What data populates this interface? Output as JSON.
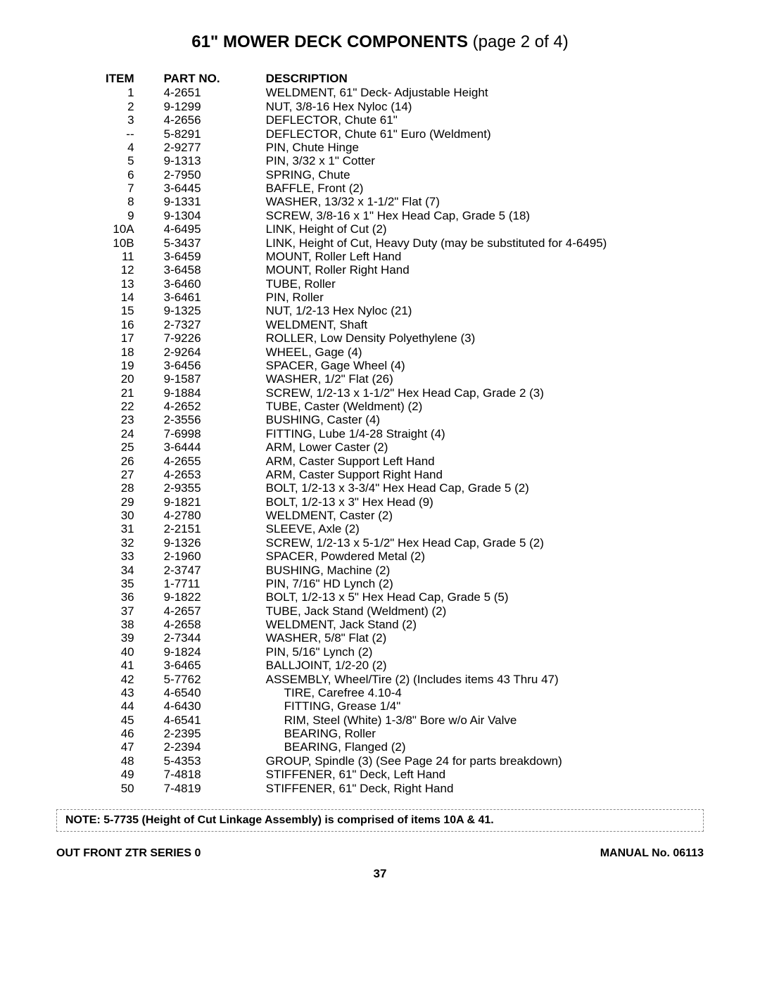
{
  "title": {
    "main": "61\" MOWER DECK COMPONENTS",
    "suffix": " (page 2 of 4)"
  },
  "headers": {
    "item": "ITEM",
    "part": "PART NO.",
    "desc": "DESCRIPTION"
  },
  "rows": [
    {
      "item": "1",
      "part": "4-2651",
      "desc": "WELDMENT, 61\" Deck- Adjustable Height"
    },
    {
      "item": "2",
      "part": "9-1299",
      "desc": "NUT, 3/8-16 Hex Nyloc (14)"
    },
    {
      "item": "3",
      "part": "4-2656",
      "desc": "DEFLECTOR, Chute 61\""
    },
    {
      "item": "--",
      "part": "5-8291",
      "desc": "DEFLECTOR, Chute 61\" Euro (Weldment)"
    },
    {
      "item": "4",
      "part": "2-9277",
      "desc": "PIN, Chute Hinge"
    },
    {
      "item": "5",
      "part": "9-1313",
      "desc": "PIN, 3/32 x 1\" Cotter"
    },
    {
      "item": "6",
      "part": "2-7950",
      "desc": "SPRING, Chute"
    },
    {
      "item": "7",
      "part": "3-6445",
      "desc": "BAFFLE, Front (2)"
    },
    {
      "item": "8",
      "part": "9-1331",
      "desc": "WASHER, 13/32 x 1-1/2\" Flat (7)"
    },
    {
      "item": "9",
      "part": "9-1304",
      "desc": "SCREW, 3/8-16 x 1\" Hex Head Cap, Grade 5 (18)"
    },
    {
      "item": "10A",
      "part": "4-6495",
      "desc": "LINK, Height of Cut (2)"
    },
    {
      "item": "10B",
      "part": "5-3437",
      "desc": "LINK, Height of Cut, Heavy Duty (may be substituted for 4-6495)"
    },
    {
      "item": "11",
      "part": "3-6459",
      "desc": "MOUNT, Roller Left Hand"
    },
    {
      "item": "12",
      "part": "3-6458",
      "desc": "MOUNT, Roller Right Hand"
    },
    {
      "item": "13",
      "part": "3-6460",
      "desc": "TUBE, Roller"
    },
    {
      "item": "14",
      "part": "3-6461",
      "desc": "PIN, Roller"
    },
    {
      "item": "15",
      "part": "9-1325",
      "desc": "NUT, 1/2-13 Hex Nyloc (21)"
    },
    {
      "item": "16",
      "part": "2-7327",
      "desc": "WELDMENT, Shaft"
    },
    {
      "item": "17",
      "part": "7-9226",
      "desc": "ROLLER, Low Density Polyethylene (3)"
    },
    {
      "item": "18",
      "part": "2-9264",
      "desc": "WHEEL, Gage (4)"
    },
    {
      "item": "19",
      "part": "3-6456",
      "desc": "SPACER, Gage Wheel (4)"
    },
    {
      "item": "20",
      "part": "9-1587",
      "desc": "WASHER, 1/2\" Flat (26)"
    },
    {
      "item": "21",
      "part": "9-1884",
      "desc": "SCREW, 1/2-13 x 1-1/2\" Hex Head Cap, Grade 2 (3)"
    },
    {
      "item": "22",
      "part": "4-2652",
      "desc": "TUBE, Caster (Weldment) (2)"
    },
    {
      "item": "23",
      "part": "2-3556",
      "desc": "BUSHING, Caster (4)"
    },
    {
      "item": "24",
      "part": "7-6998",
      "desc": "FITTING, Lube 1/4-28 Straight (4)"
    },
    {
      "item": "25",
      "part": "3-6444",
      "desc": "ARM, Lower Caster (2)"
    },
    {
      "item": "26",
      "part": "4-2655",
      "desc": "ARM, Caster Support Left Hand"
    },
    {
      "item": "27",
      "part": "4-2653",
      "desc": "ARM, Caster Support Right Hand"
    },
    {
      "item": "28",
      "part": "2-9355",
      "desc": "BOLT, 1/2-13 x 3-3/4\" Hex Head Cap, Grade 5 (2)"
    },
    {
      "item": "29",
      "part": "9-1821",
      "desc": "BOLT, 1/2-13 x 3\" Hex Head (9)"
    },
    {
      "item": "30",
      "part": "4-2780",
      "desc": "WELDMENT, Caster (2)"
    },
    {
      "item": "31",
      "part": "2-2151",
      "desc": "SLEEVE, Axle (2)"
    },
    {
      "item": "32",
      "part": "9-1326",
      "desc": "SCREW, 1/2-13 x 5-1/2\" Hex Head Cap, Grade 5 (2)"
    },
    {
      "item": "33",
      "part": "2-1960",
      "desc": "SPACER, Powdered Metal (2)"
    },
    {
      "item": "34",
      "part": "2-3747",
      "desc": "BUSHING, Machine (2)"
    },
    {
      "item": "35",
      "part": "1-7711",
      "desc": "PIN, 7/16\" HD Lynch (2)"
    },
    {
      "item": "36",
      "part": "9-1822",
      "desc": "BOLT, 1/2-13 x 5\" Hex Head Cap, Grade 5 (5)"
    },
    {
      "item": "37",
      "part": "4-2657",
      "desc": "TUBE, Jack Stand (Weldment) (2)"
    },
    {
      "item": "38",
      "part": "4-2658",
      "desc": "WELDMENT, Jack Stand (2)"
    },
    {
      "item": "39",
      "part": "2-7344",
      "desc": "WASHER, 5/8\" Flat (2)"
    },
    {
      "item": "40",
      "part": "9-1824",
      "desc": "PIN, 5/16\" Lynch (2)"
    },
    {
      "item": "41",
      "part": "3-6465",
      "desc": "BALLJOINT, 1/2-20 (2)"
    },
    {
      "item": "42",
      "part": "5-7762",
      "desc": "ASSEMBLY, Wheel/Tire (2) (Includes items 43 Thru 47)"
    },
    {
      "item": "43",
      "part": "4-6540",
      "desc": "TIRE, Carefree 4.10-4",
      "indent": true
    },
    {
      "item": "44",
      "part": "4-6430",
      "desc": "FITTING, Grease 1/4\"",
      "indent": true
    },
    {
      "item": "45",
      "part": "4-6541",
      "desc": "RIM, Steel (White) 1-3/8\" Bore w/o Air Valve",
      "indent": true
    },
    {
      "item": "46",
      "part": "2-2395",
      "desc": "BEARING, Roller",
      "indent": true
    },
    {
      "item": "47",
      "part": "2-2394",
      "desc": "BEARING, Flanged (2)",
      "indent": true
    },
    {
      "item": "48",
      "part": "5-4353",
      "desc": "GROUP, Spindle (3) (See Page 24 for parts breakdown)"
    },
    {
      "item": "49",
      "part": "7-4818",
      "desc": "STIFFENER, 61\" Deck, Left Hand"
    },
    {
      "item": "50",
      "part": "7-4819",
      "desc": "STIFFENER, 61\" Deck, Right Hand"
    }
  ],
  "note": "NOTE: 5-7735 (Height of Cut Linkage Assembly) is comprised of items 10A & 41.",
  "footer": {
    "left": "OUT FRONT ZTR SERIES 0",
    "right": "MANUAL No. 06113"
  },
  "page_number": "37"
}
